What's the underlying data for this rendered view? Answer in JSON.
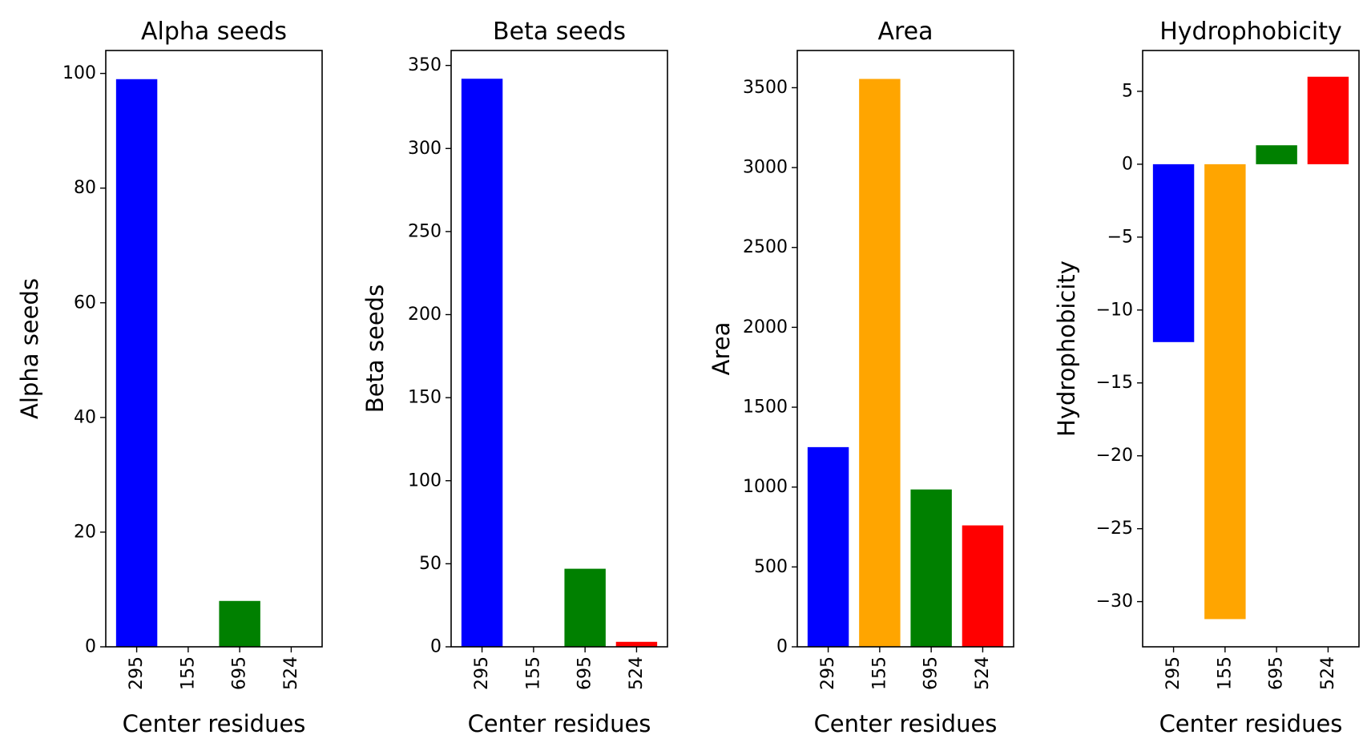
{
  "chart_data": [
    {
      "type": "bar",
      "title": "Alpha seeds",
      "xlabel": "Center residues",
      "ylabel": "Alpha seeds",
      "categories": [
        "295",
        "155",
        "695",
        "524"
      ],
      "values": [
        99,
        0,
        8,
        0
      ],
      "colors": [
        "#0000ff",
        "#ffa500",
        "#008000",
        "#ff0000"
      ],
      "ylim": [
        0,
        104
      ],
      "yticks": [
        0,
        20,
        40,
        60,
        80,
        100
      ],
      "ytick_labels": [
        "0",
        "20",
        "40",
        "60",
        "80",
        "100"
      ],
      "grid": false,
      "legend": "none"
    },
    {
      "type": "bar",
      "title": "Beta seeds",
      "xlabel": "Center residues",
      "ylabel": "Beta seeds",
      "categories": [
        "295",
        "155",
        "695",
        "524"
      ],
      "values": [
        342,
        0,
        47,
        3
      ],
      "colors": [
        "#0000ff",
        "#ffa500",
        "#008000",
        "#ff0000"
      ],
      "ylim": [
        0,
        359
      ],
      "yticks": [
        0,
        50,
        100,
        150,
        200,
        250,
        300,
        350
      ],
      "ytick_labels": [
        "0",
        "50",
        "100",
        "150",
        "200",
        "250",
        "300",
        "350"
      ],
      "grid": false,
      "legend": "none"
    },
    {
      "type": "bar",
      "title": "Area",
      "xlabel": "Center residues",
      "ylabel": "Area",
      "categories": [
        "295",
        "155",
        "695",
        "524"
      ],
      "values": [
        1250,
        3555,
        985,
        760
      ],
      "colors": [
        "#0000ff",
        "#ffa500",
        "#008000",
        "#ff0000"
      ],
      "ylim": [
        0,
        3733
      ],
      "yticks": [
        0,
        500,
        1000,
        1500,
        2000,
        2500,
        3000,
        3500
      ],
      "ytick_labels": [
        "0",
        "500",
        "1000",
        "1500",
        "2000",
        "2500",
        "3000",
        "3500"
      ],
      "grid": false,
      "legend": "none"
    },
    {
      "type": "bar",
      "title": "Hydrophobicity",
      "xlabel": "Center residues",
      "ylabel": "Hydrophobicity",
      "categories": [
        "295",
        "155",
        "695",
        "524"
      ],
      "values": [
        -12.2,
        -31.2,
        1.3,
        6.0
      ],
      "colors": [
        "#0000ff",
        "#ffa500",
        "#008000",
        "#ff0000"
      ],
      "ylim": [
        -33.1,
        7.8
      ],
      "yticks": [
        -30,
        -25,
        -20,
        -15,
        -10,
        -5,
        0,
        5
      ],
      "ytick_labels": [
        "−30",
        "−25",
        "−20",
        "−15",
        "−10",
        "−5",
        "0",
        "5"
      ],
      "grid": false,
      "legend": "none"
    }
  ]
}
